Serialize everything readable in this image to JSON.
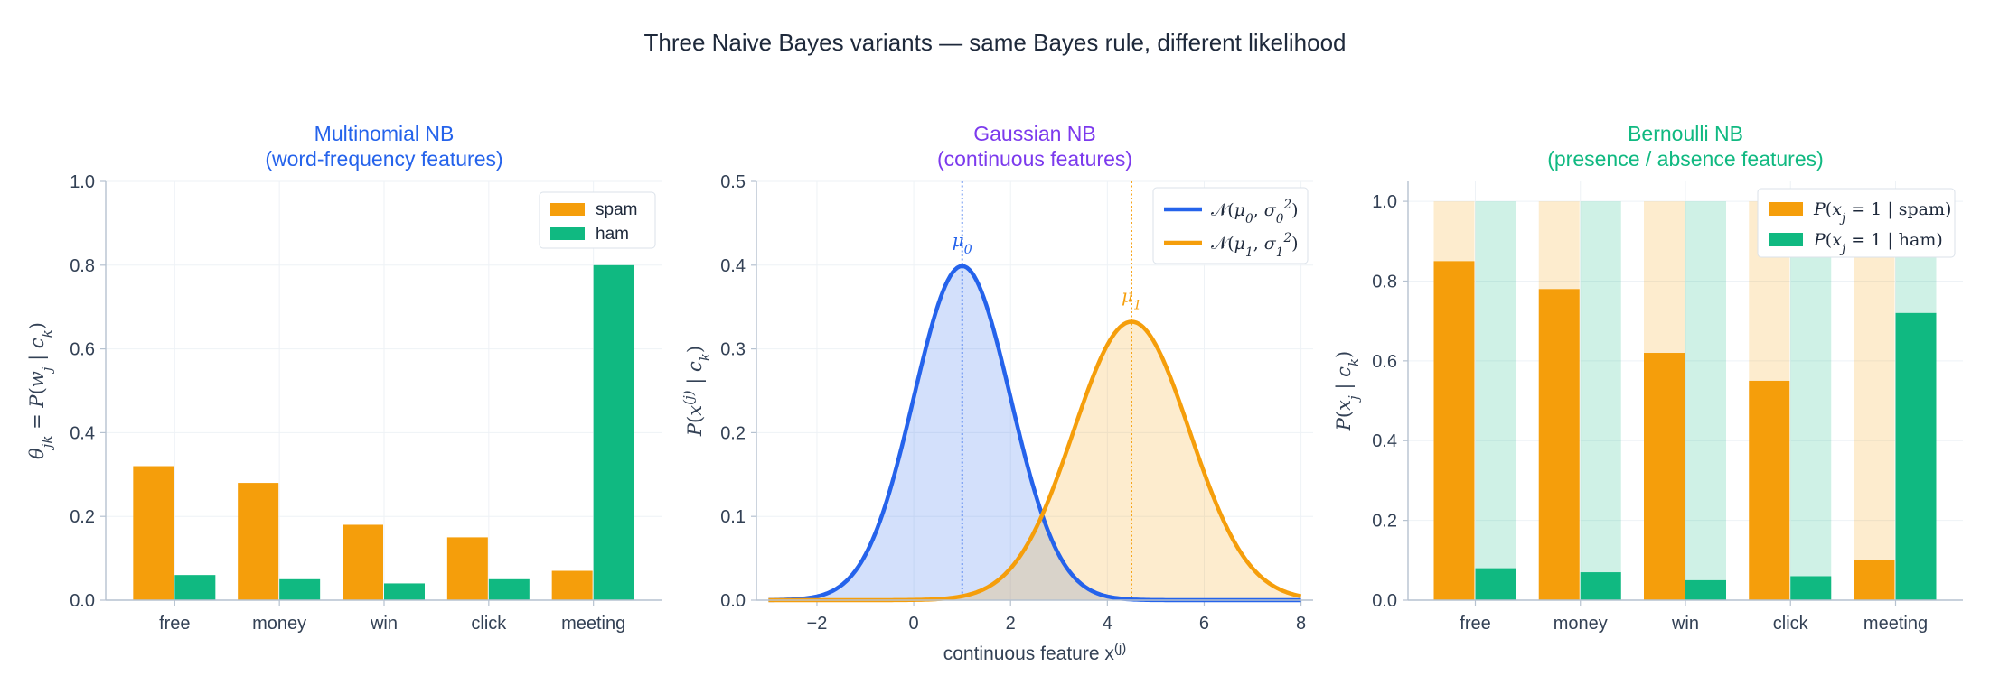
{
  "figure": {
    "title": "Three Naive Bayes variants — same Bayes rule, different likelihood"
  },
  "colors": {
    "spam": "#f59e0b",
    "ham": "#10b981",
    "gauss0": "#2563eb",
    "gauss1": "#f59e0b",
    "title_multinomial": "#2563eb",
    "title_gaussian": "#7c3aed",
    "title_bernoulli": "#10b981",
    "grid": "#eef2f6",
    "spine": "#b6c2d0"
  },
  "chart_data": [
    {
      "type": "bar",
      "title_line1": "Multinomial NB",
      "title_line2": "(word-frequency features)",
      "xlabel": "",
      "ylabel": "θjk = P(wj | ck)",
      "ylim": [
        0,
        1.0
      ],
      "yticks": [
        "0.0",
        "0.2",
        "0.4",
        "0.6",
        "0.8",
        "1.0"
      ],
      "categories": [
        "free",
        "money",
        "win",
        "click",
        "meeting"
      ],
      "series": [
        {
          "name": "spam",
          "values": [
            0.32,
            0.28,
            0.18,
            0.15,
            0.07
          ]
        },
        {
          "name": "ham",
          "values": [
            0.06,
            0.05,
            0.04,
            0.05,
            0.8
          ]
        }
      ],
      "legend": "top-right",
      "grid": true
    },
    {
      "type": "area",
      "title_line1": "Gaussian NB",
      "title_line2": "(continuous features)",
      "xlabel": "continuous feature x(j)",
      "ylabel": "P(x(j) | ck)",
      "xlim": [
        -3.25,
        8.25
      ],
      "ylim": [
        0,
        0.5
      ],
      "xticks": [
        "−2",
        "0",
        "2",
        "4",
        "6",
        "8"
      ],
      "yticks": [
        "0.0",
        "0.1",
        "0.2",
        "0.3",
        "0.4",
        "0.5"
      ],
      "series": [
        {
          "name": "𝒩(μ0, σ0²)",
          "mu": 1.0,
          "sigma": 1.0,
          "peak_label": "μ0"
        },
        {
          "name": "𝒩(μ1, σ1²)",
          "mu": 4.5,
          "sigma": 1.2,
          "peak_label": "μ1"
        }
      ],
      "legend": "top-right",
      "grid": true
    },
    {
      "type": "bar",
      "title_line1": "Bernoulli NB",
      "title_line2": "(presence / absence features)",
      "xlabel": "",
      "ylabel": "P(xj | ck)",
      "ylim": [
        0,
        1.05
      ],
      "yticks": [
        "0.0",
        "0.2",
        "0.4",
        "0.6",
        "0.8",
        "1.0"
      ],
      "categories": [
        "free",
        "money",
        "win",
        "click",
        "meeting"
      ],
      "series": [
        {
          "name": "P(xj = 1 | spam)",
          "values": [
            0.85,
            0.78,
            0.62,
            0.55,
            0.1
          ]
        },
        {
          "name": "P(xj = 1 | ham)",
          "values": [
            0.08,
            0.07,
            0.05,
            0.06,
            0.72
          ]
        }
      ],
      "background_max": 1.0,
      "legend": "top-right",
      "grid": true
    }
  ]
}
